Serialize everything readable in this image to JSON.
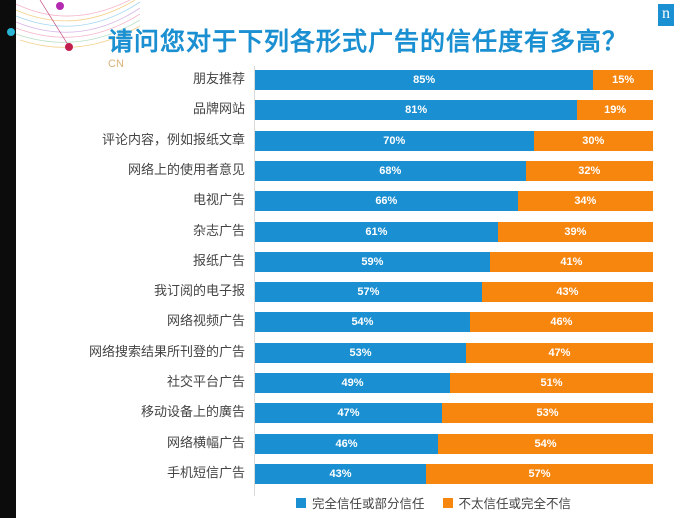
{
  "header": {
    "title": "请问您对于下列各形式广告的信任度有多高？",
    "region": "CN",
    "logo_letter": "n"
  },
  "colors": {
    "trust": "#1a8fd1",
    "distrust": "#f7860f",
    "title": "#1a8fd1"
  },
  "chart_data": {
    "type": "bar",
    "orientation": "horizontal",
    "stacked": true,
    "title": "请问您对于下列各形式广告的信任度有多高？",
    "categories": [
      "朋友推荐",
      "品牌网站",
      "评论内容，例如报纸文章",
      "网络上的使用者意见",
      "电视广告",
      "杂志广告",
      "报纸广告",
      "我订阅的电子报",
      "网络视频广告",
      "网络搜索结果所刊登的广告",
      "社交平台广告",
      "移动设备上的廣告",
      "网络横幅广告",
      "手机短信广告"
    ],
    "series": [
      {
        "name": "完全信任或部分信任",
        "values": [
          85,
          81,
          70,
          68,
          66,
          61,
          59,
          57,
          54,
          53,
          49,
          47,
          46,
          43
        ]
      },
      {
        "name": "不太信任或完全不信",
        "values": [
          15,
          19,
          30,
          32,
          34,
          39,
          41,
          43,
          46,
          47,
          51,
          53,
          54,
          57
        ]
      }
    ],
    "unit": "%",
    "xlim": [
      0,
      100
    ],
    "legend_position": "bottom"
  }
}
